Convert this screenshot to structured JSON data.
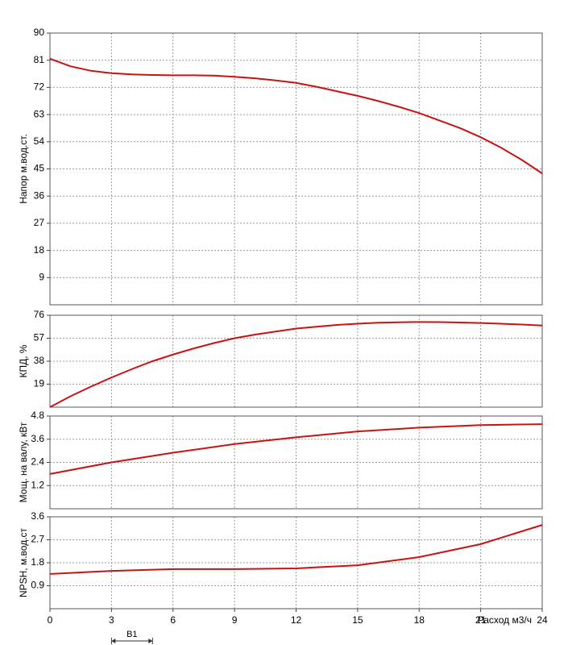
{
  "chart_data": [
    {
      "type": "line",
      "ylabel": "Напор м.вод.ст.",
      "xlim": [
        0,
        24
      ],
      "xticks": [
        0,
        3,
        6,
        9,
        12,
        15,
        18,
        21,
        24
      ],
      "ylim": [
        0,
        90
      ],
      "yticks": [
        9,
        18,
        27,
        36,
        45,
        54,
        63,
        72,
        81,
        90
      ],
      "grid": true,
      "x": [
        0,
        1,
        2,
        3,
        4,
        5,
        6,
        7,
        8,
        9,
        10,
        11,
        12,
        13,
        14,
        15,
        16,
        17,
        18,
        19,
        20,
        21,
        22,
        23,
        24
      ],
      "series": [
        {
          "color": "#cc1111",
          "values": [
            81.5,
            79,
            77.5,
            76.7,
            76.3,
            76.1,
            76,
            76,
            75.9,
            75.5,
            75,
            74.3,
            73.5,
            72.2,
            70.7,
            69.2,
            67.5,
            65.6,
            63.5,
            61,
            58.5,
            55.5,
            52,
            48,
            43.5
          ]
        }
      ]
    },
    {
      "type": "line",
      "ylabel": "КПД, %",
      "xlim": [
        0,
        24
      ],
      "xticks": [
        0,
        3,
        6,
        9,
        12,
        15,
        18,
        21,
        24
      ],
      "ylim": [
        0,
        76
      ],
      "yticks": [
        19,
        38,
        57,
        76
      ],
      "grid": true,
      "x": [
        0,
        1,
        2,
        3,
        4,
        5,
        6,
        7,
        8,
        9,
        10,
        11,
        12,
        13,
        14,
        15,
        16,
        17,
        18,
        19,
        20,
        21,
        22,
        23,
        24
      ],
      "series": [
        {
          "color": "#cc1111",
          "values": [
            0,
            9,
            17,
            24.5,
            31.5,
            38,
            43.5,
            48.5,
            53,
            57,
            60,
            62.5,
            65,
            66.5,
            68,
            69,
            69.8,
            70.2,
            70.4,
            70.3,
            70,
            69.6,
            69,
            68.3,
            67.5
          ]
        }
      ]
    },
    {
      "type": "line",
      "ylabel": "Мощ. на валу, кВт",
      "xlim": [
        0,
        24
      ],
      "xticks": [
        0,
        3,
        6,
        9,
        12,
        15,
        18,
        21,
        24
      ],
      "ylim": [
        0,
        4.8
      ],
      "yticks": [
        1.2,
        2.4,
        3.6,
        4.8
      ],
      "grid": true,
      "x": [
        0,
        3,
        6,
        9,
        12,
        15,
        18,
        21,
        24
      ],
      "series": [
        {
          "color": "#cc1111",
          "values": [
            1.8,
            2.4,
            2.9,
            3.35,
            3.7,
            4.0,
            4.2,
            4.33,
            4.38
          ]
        }
      ]
    },
    {
      "type": "line",
      "ylabel": "NPSH, м.вод.ст",
      "xlabel": "Расход м3/ч",
      "xlim": [
        0,
        24
      ],
      "xticks": [
        0,
        3,
        6,
        9,
        12,
        15,
        18,
        21,
        24
      ],
      "ylim": [
        0,
        3.6
      ],
      "yticks": [
        0.9,
        1.8,
        2.7,
        3.6
      ],
      "grid": true,
      "x": [
        0,
        3,
        6,
        9,
        12,
        15,
        18,
        21,
        24
      ],
      "series": [
        {
          "color": "#cc1111",
          "values": [
            1.36,
            1.48,
            1.55,
            1.55,
            1.58,
            1.7,
            2.02,
            2.53,
            3.28
          ]
        }
      ],
      "annotation": "B1",
      "annotation_range": [
        3,
        5
      ]
    }
  ]
}
